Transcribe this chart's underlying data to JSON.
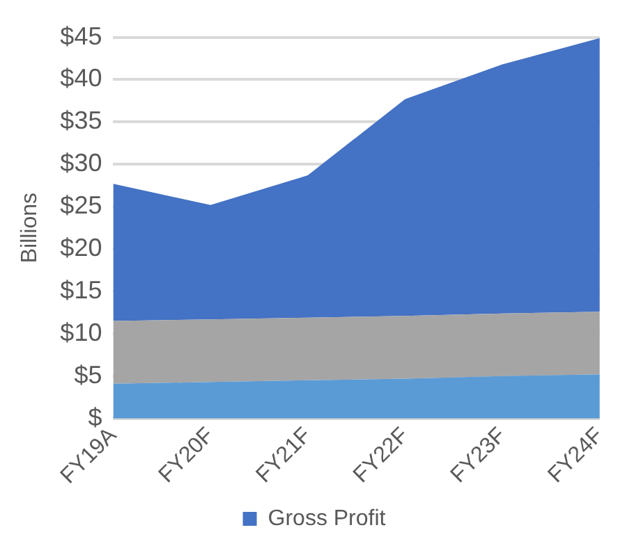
{
  "chart_data": {
    "type": "area",
    "stacked": true,
    "ylabel": "Billions",
    "categories": [
      "FY19A",
      "FY20F",
      "FY21F",
      "FY22F",
      "FY23F",
      "FY24F"
    ],
    "series": [
      {
        "color": "#5b9bd5",
        "values": [
          4.1,
          4.3,
          4.5,
          4.7,
          5.0,
          5.2
        ]
      },
      {
        "color": "#a5a5a5",
        "values": [
          7.4,
          7.4,
          7.4,
          7.4,
          7.4,
          7.4
        ]
      },
      {
        "name": "Gross Profit",
        "color": "#4472c4",
        "values": [
          16.2,
          13.5,
          16.8,
          25.6,
          29.4,
          32.3
        ]
      }
    ],
    "ylim": [
      0,
      45
    ],
    "yticks": [
      {
        "value": 0,
        "label": "$"
      },
      {
        "value": 5,
        "label": "$5"
      },
      {
        "value": 10,
        "label": "$10"
      },
      {
        "value": 15,
        "label": "$15"
      },
      {
        "value": 20,
        "label": "$20"
      },
      {
        "value": 25,
        "label": "$25"
      },
      {
        "value": 30,
        "label": "$30"
      },
      {
        "value": 35,
        "label": "$35"
      },
      {
        "value": 40,
        "label": "$40"
      },
      {
        "value": 45,
        "label": "$45"
      }
    ],
    "grid": "y",
    "legend": "bottom"
  }
}
